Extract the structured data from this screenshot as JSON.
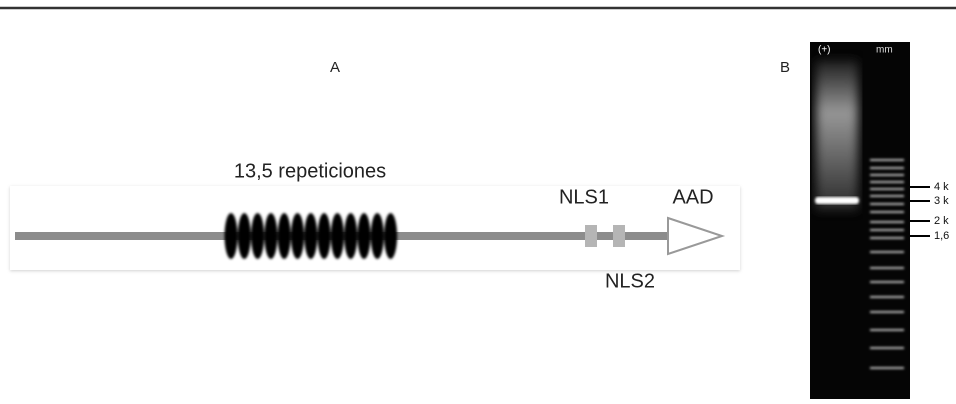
{
  "panel_a": {
    "label": "A",
    "repeats_label": "13,5 repeticiones",
    "nls1": "NLS1",
    "nls2": "NLS2",
    "aad": "AAD"
  },
  "panel_b": {
    "label": "B",
    "lane_positive": "(+)",
    "lane_marker": "mm",
    "markers": [
      "4 k",
      "3 k",
      "2 k",
      "1,6"
    ]
  }
}
